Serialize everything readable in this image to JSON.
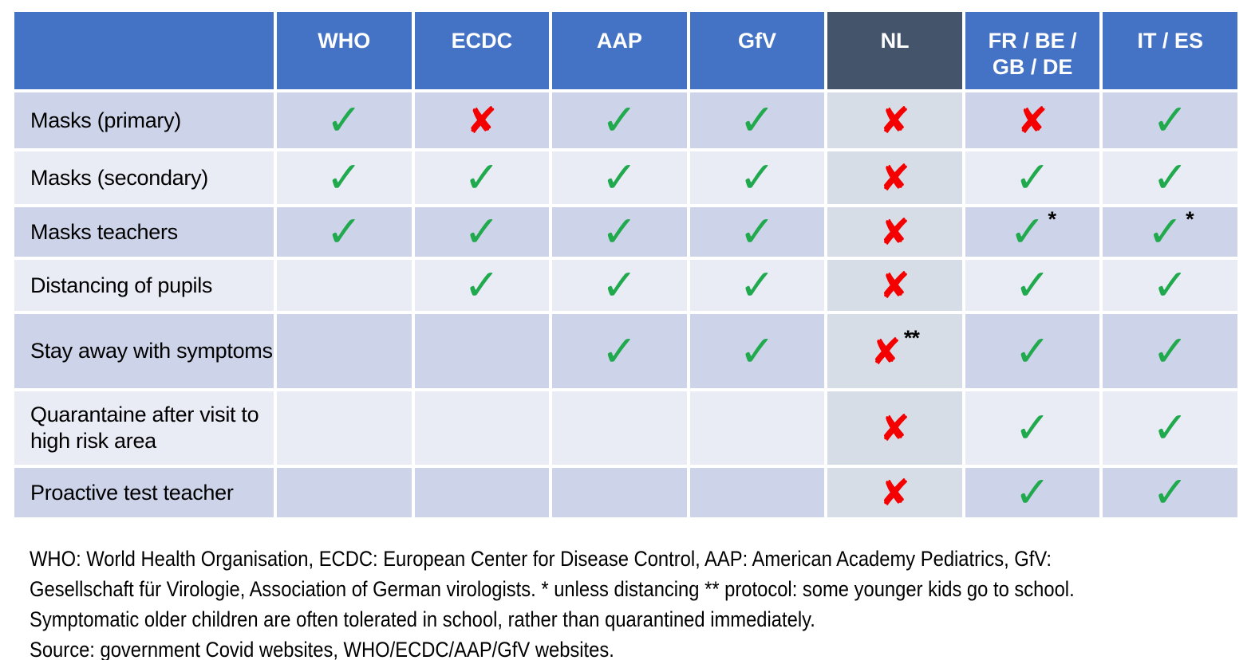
{
  "colors": {
    "header_blue": "#4472C4",
    "header_dark": "#44546A",
    "row_dark": "#CDD4E9",
    "row_light": "#E9EBF5",
    "nl_cell": "#D7DDE6",
    "mark_green": "#21A94E",
    "mark_red": "#F40000"
  },
  "icons": {
    "check": "✓",
    "cross": "✘"
  },
  "table": {
    "corner_label": "",
    "columns": [
      {
        "label": "WHO",
        "highlight": false
      },
      {
        "label": "ECDC",
        "highlight": false
      },
      {
        "label": "AAP",
        "highlight": false
      },
      {
        "label": "GfV",
        "highlight": false
      },
      {
        "label": "NL",
        "highlight": true
      },
      {
        "label": "FR / BE / GB / DE",
        "highlight": false
      },
      {
        "label": "IT / ES",
        "highlight": false
      }
    ],
    "rows": [
      {
        "label": "Masks (primary)",
        "cells": [
          {
            "mark": "check",
            "note": ""
          },
          {
            "mark": "cross",
            "note": ""
          },
          {
            "mark": "check",
            "note": ""
          },
          {
            "mark": "check",
            "note": ""
          },
          {
            "mark": "cross",
            "note": ""
          },
          {
            "mark": "cross",
            "note": ""
          },
          {
            "mark": "check",
            "note": ""
          }
        ]
      },
      {
        "label": "Masks (secondary)",
        "cells": [
          {
            "mark": "check",
            "note": ""
          },
          {
            "mark": "check",
            "note": ""
          },
          {
            "mark": "check",
            "note": ""
          },
          {
            "mark": "check",
            "note": ""
          },
          {
            "mark": "cross",
            "note": ""
          },
          {
            "mark": "check",
            "note": ""
          },
          {
            "mark": "check",
            "note": ""
          }
        ]
      },
      {
        "label": "Masks teachers",
        "cells": [
          {
            "mark": "check",
            "note": ""
          },
          {
            "mark": "check",
            "note": ""
          },
          {
            "mark": "check",
            "note": ""
          },
          {
            "mark": "check",
            "note": ""
          },
          {
            "mark": "cross",
            "note": ""
          },
          {
            "mark": "check",
            "note": "*"
          },
          {
            "mark": "check",
            "note": "*"
          }
        ]
      },
      {
        "label": "Distancing of pupils",
        "cells": [
          {
            "mark": "",
            "note": ""
          },
          {
            "mark": "check",
            "note": ""
          },
          {
            "mark": "check",
            "note": ""
          },
          {
            "mark": "check",
            "note": ""
          },
          {
            "mark": "cross",
            "note": ""
          },
          {
            "mark": "check",
            "note": ""
          },
          {
            "mark": "check",
            "note": ""
          }
        ]
      },
      {
        "label": "Stay away with symptoms",
        "cells": [
          {
            "mark": "",
            "note": ""
          },
          {
            "mark": "",
            "note": ""
          },
          {
            "mark": "check",
            "note": ""
          },
          {
            "mark": "check",
            "note": ""
          },
          {
            "mark": "cross",
            "note": "**"
          },
          {
            "mark": "check",
            "note": ""
          },
          {
            "mark": "check",
            "note": ""
          }
        ]
      },
      {
        "label": "Quarantaine after visit to high risk area",
        "cells": [
          {
            "mark": "",
            "note": ""
          },
          {
            "mark": "",
            "note": ""
          },
          {
            "mark": "",
            "note": ""
          },
          {
            "mark": "",
            "note": ""
          },
          {
            "mark": "cross",
            "note": ""
          },
          {
            "mark": "check",
            "note": ""
          },
          {
            "mark": "check",
            "note": ""
          }
        ]
      },
      {
        "label": "Proactive test teacher",
        "cells": [
          {
            "mark": "",
            "note": ""
          },
          {
            "mark": "",
            "note": ""
          },
          {
            "mark": "",
            "note": ""
          },
          {
            "mark": "",
            "note": ""
          },
          {
            "mark": "cross",
            "note": ""
          },
          {
            "mark": "check",
            "note": ""
          },
          {
            "mark": "check",
            "note": ""
          }
        ]
      }
    ]
  },
  "footer": {
    "lines": [
      "WHO: World Health Organisation, ECDC: European Center for Disease Control, AAP: American Academy Pediatrics, GfV:",
      "Gesellschaft für Virologie, Association of German virologists. * unless distancing ** protocol: some younger kids go to school.",
      "Symptomatic older children are often tolerated in school, rather than quarantined immediately.",
      "Source: government Covid websites, WHO/ECDC/AAP/GfV websites."
    ]
  }
}
